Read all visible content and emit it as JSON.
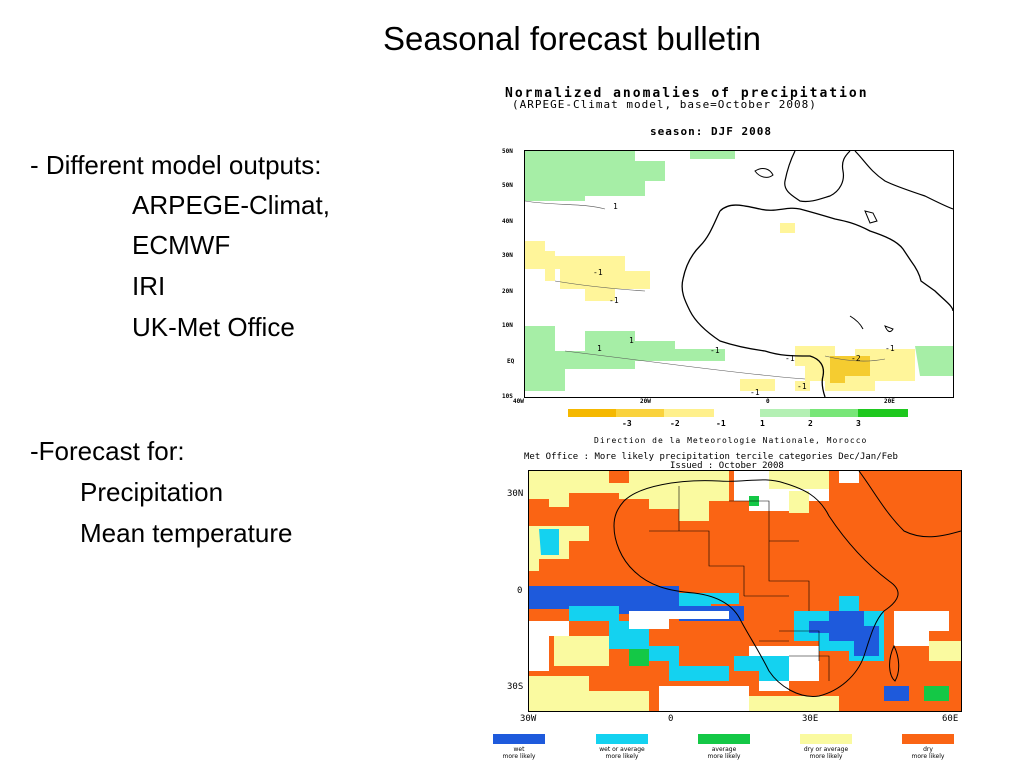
{
  "slide": {
    "title": "Seasonal forecast bulletin"
  },
  "text_block": {
    "model_heading": "- Different model outputs:",
    "models": [
      "ARPEGE-Climat,",
      "ECMWF",
      "IRI",
      "UK-Met Office"
    ],
    "forecast_heading": "-Forecast for:",
    "forecast_items": [
      "Precipitation",
      "Mean temperature"
    ]
  },
  "map1": {
    "title": "Normalized anomalies of precipitation",
    "subtitle": "(ARPEGE-Climat model, base=October 2008)",
    "season": "season: DJF 2008",
    "lat_ticks": [
      "50N",
      "50N",
      "40N",
      "30N",
      "20N",
      "10N",
      "EQ",
      "10S"
    ],
    "lon_ticks": [
      "40W",
      "20W",
      "0",
      "20E"
    ],
    "contour_labels": [
      "1",
      "-1",
      "-1",
      "1",
      "1",
      "-1",
      "-1",
      "-2",
      "-1",
      "-1",
      "-1"
    ],
    "colorbar_labels": [
      "-3",
      "-2",
      "-1",
      "1",
      "2",
      "3"
    ],
    "colorbar_colors": [
      "#f5b800",
      "#fad23c",
      "#fff08c",
      "#b4f0b4",
      "#78e678",
      "#1ec81e"
    ],
    "footer": "Direction de la Meteorologie Nationale, Morocco"
  },
  "map2": {
    "title": "Met Office : More likely precipitation tercile categories Dec/Jan/Feb",
    "issued": "Issued : October 2008",
    "lat_ticks": [
      "30N",
      "0",
      "30S"
    ],
    "lon_ticks": [
      "30W",
      "0",
      "30E",
      "60E"
    ],
    "legend": [
      {
        "label": "wet\nmore likely",
        "color": "#1e5adc"
      },
      {
        "label": "wet or average\nmore likely",
        "color": "#14d2f0"
      },
      {
        "label": "average\nmore likely",
        "color": "#14c846"
      },
      {
        "label": "dry or average\nmore likely",
        "color": "#fafaa0"
      },
      {
        "label": "dry\nmore likely",
        "color": "#fa6414"
      }
    ]
  }
}
